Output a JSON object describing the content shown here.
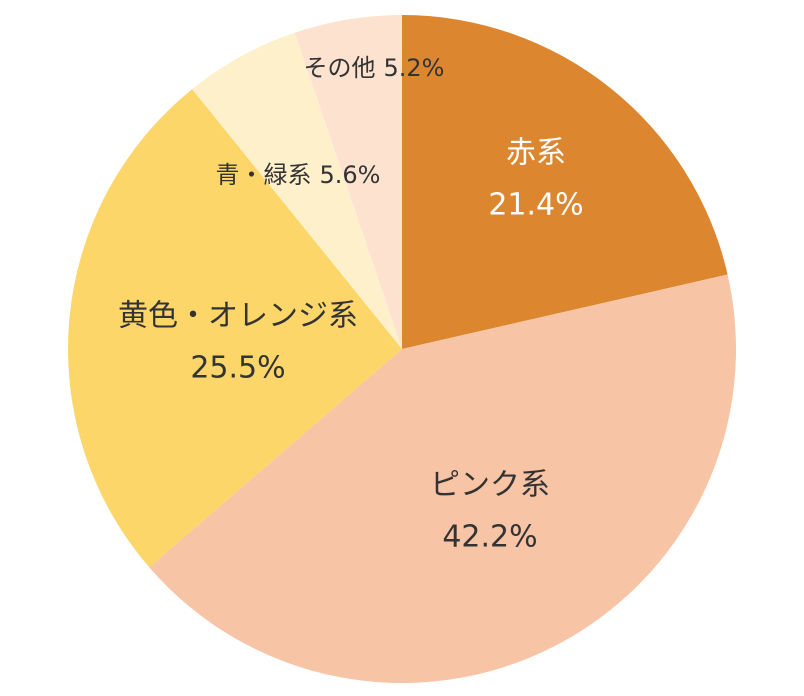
{
  "chart_data": {
    "type": "pie",
    "title": "",
    "start_angle_deg": 0,
    "direction": "clockwise",
    "slices": [
      {
        "label": "赤系",
        "value": 21.4,
        "value_label": "21.4%",
        "color": "#DD8630",
        "text_color": "#ffffff"
      },
      {
        "label": "ピンク系",
        "value": 42.2,
        "value_label": "42.2%",
        "color": "#F7C4A6",
        "text_color": "#333333"
      },
      {
        "label": "黄色・オレンジ系",
        "value": 25.5,
        "value_label": "25.5%",
        "color": "#FCD669",
        "text_color": "#333333"
      },
      {
        "label": "青・緑系",
        "value": 5.6,
        "value_label": "5.6%",
        "color": "#FFF0CC",
        "text_color": "#333333"
      },
      {
        "label": "その他",
        "value": 5.2,
        "value_label": "5.2%",
        "color": "#FDE3CF",
        "text_color": "#333333"
      }
    ]
  }
}
